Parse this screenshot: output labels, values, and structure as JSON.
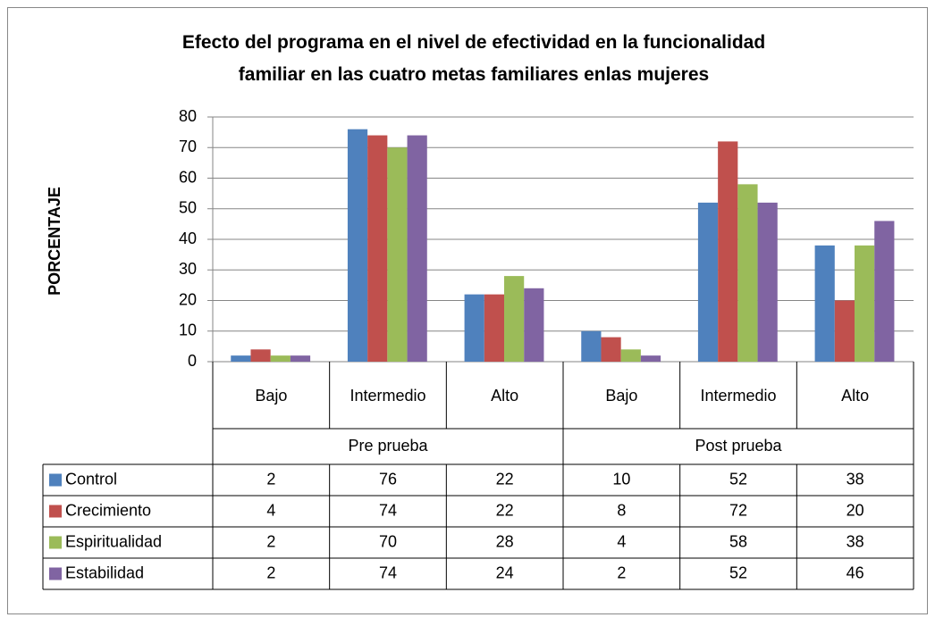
{
  "chart_data": {
    "type": "bar",
    "title": "Efecto del programa en el  nivel de efectividad en la funcionalidad familiar en las cuatro metas familiares enlas mujeres",
    "ylabel": "PORCENTAJE",
    "categories": [
      "Bajo",
      "Intermedio",
      "Alto",
      "Bajo",
      "Intermedio",
      "Alto"
    ],
    "groups": [
      "Pre prueba",
      "Post prueba"
    ],
    "series": [
      {
        "name": "Control",
        "color": "#4f81bd",
        "values": [
          2,
          76,
          22,
          10,
          52,
          38
        ]
      },
      {
        "name": "Crecimiento",
        "color": "#c0504d",
        "values": [
          4,
          74,
          22,
          8,
          72,
          20
        ]
      },
      {
        "name": "Espiritualidad",
        "color": "#9bbb59",
        "values": [
          2,
          70,
          28,
          4,
          58,
          38
        ]
      },
      {
        "name": "Estabilidad",
        "color": "#8064a2",
        "values": [
          2,
          74,
          24,
          2,
          52,
          46
        ]
      }
    ],
    "ylim": [
      0,
      80
    ],
    "yticks": [
      0,
      10,
      20,
      30,
      40,
      50,
      60,
      70,
      80
    ],
    "grid": true
  }
}
